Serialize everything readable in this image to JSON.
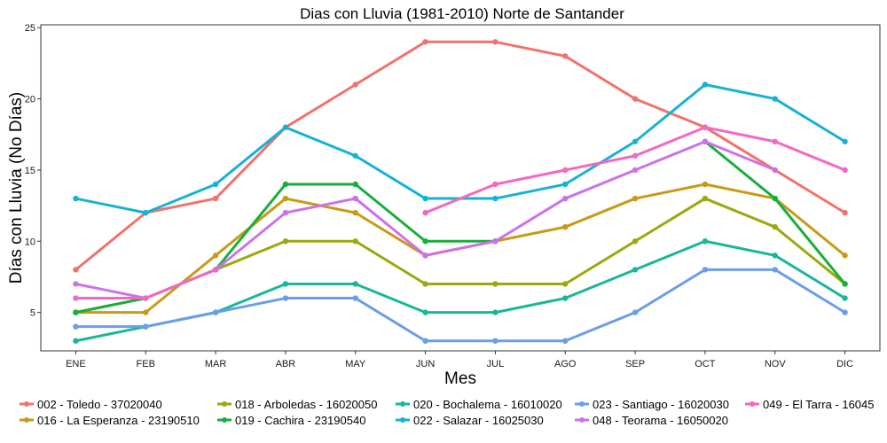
{
  "chart_data": {
    "type": "line",
    "title": "Dias con Lluvia (1981-2010)  Norte de Santander",
    "xlabel": "Mes",
    "ylabel": "Días con Lluvia (No Días)",
    "categories": [
      "ENE",
      "FEB",
      "MAR",
      "ABR",
      "MAY",
      "JUN",
      "JUL",
      "AGO",
      "SEP",
      "OCT",
      "NOV",
      "DIC"
    ],
    "ylim": [
      2.3,
      25.2
    ],
    "yticks": [
      5,
      10,
      15,
      20,
      25
    ],
    "grid": false,
    "legend_position": "bottom",
    "series": [
      {
        "name": "002 - Toledo - 37020040",
        "color": "#F0736B",
        "values": [
          8,
          12,
          13,
          18,
          21,
          24,
          24,
          23,
          20,
          18,
          15,
          12
        ]
      },
      {
        "name": "016 - La Esperanza - 23190510",
        "color": "#C89A16",
        "values": [
          5,
          5,
          9,
          13,
          12,
          9,
          10,
          11,
          13,
          14,
          13,
          9
        ]
      },
      {
        "name": "018 - Arboledas - 16020050",
        "color": "#9BA80E",
        "values": [
          5,
          6,
          8,
          10,
          10,
          7,
          7,
          7,
          10,
          13,
          11,
          7
        ]
      },
      {
        "name": "019 - Cachira - 23190540",
        "color": "#18AE3C",
        "values": [
          5,
          6,
          8,
          14,
          14,
          10,
          10,
          null,
          null,
          17,
          13,
          7
        ]
      },
      {
        "name": "020 - Bochalema - 16010020",
        "color": "#19B79A",
        "values": [
          3,
          4,
          5,
          7,
          7,
          5,
          5,
          6,
          8,
          10,
          9,
          6
        ]
      },
      {
        "name": "022 - Salazar - 16025030",
        "color": "#16B2D6",
        "values": [
          13,
          12,
          14,
          18,
          16,
          13,
          13,
          14,
          17,
          21,
          20,
          17
        ]
      },
      {
        "name": "023 - Santiago - 16020030",
        "color": "#6A9EE8",
        "values": [
          4,
          4,
          5,
          6,
          6,
          3,
          3,
          3,
          5,
          8,
          8,
          5
        ]
      },
      {
        "name": "048 - Teorama - 16050020",
        "color": "#CB72EA",
        "values": [
          7,
          6,
          8,
          12,
          13,
          9,
          10,
          13,
          15,
          17,
          15,
          null
        ]
      },
      {
        "name": "049 - El Tarra - 16045",
        "color": "#F467C2",
        "values": [
          6,
          6,
          8,
          null,
          null,
          12,
          14,
          15,
          16,
          18,
          17,
          15
        ]
      }
    ]
  }
}
